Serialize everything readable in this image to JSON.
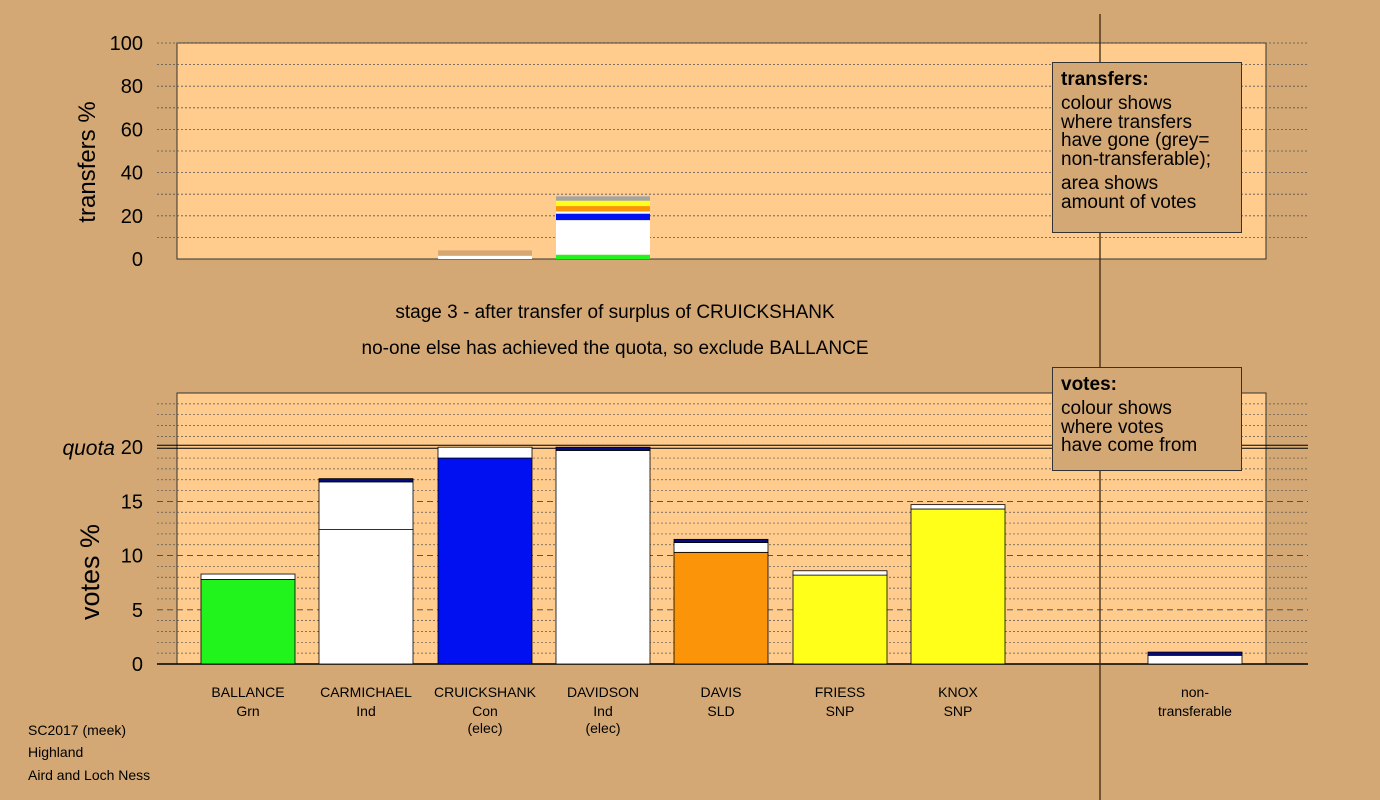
{
  "footer": {
    "line1": "SC2017 (meek)",
    "line2": "Highland",
    "line3": "Aird and Loch Ness"
  },
  "stage_title": "stage 3 - after transfer of surplus of CRUICKSHANK",
  "stage_subtitle": "no-one else has achieved the quota, so exclude BALLANCE",
  "legend_transfers": {
    "title": "transfers:",
    "lines_a": [
      "colour shows",
      "where transfers",
      "have gone (grey=",
      "non-transferable);"
    ],
    "lines_b": [
      "area shows",
      "amount of votes"
    ]
  },
  "legend_votes": {
    "title": "votes:",
    "lines": [
      "colour shows",
      "where votes",
      "have come from"
    ]
  },
  "colors": {
    "background": "#d3a874",
    "plot_bg": "#ffcc8e",
    "green": "#21f31d",
    "white": "#ffffff",
    "blue": "#0010f0",
    "navy": "#050b80",
    "orange": "#fb9408",
    "yellow": "#ffff19",
    "grey": "#a3a3a3",
    "gold": "#d4a870"
  },
  "chart_data": [
    {
      "type": "bar",
      "stacked": true,
      "ylabel": "transfers %",
      "ylim": [
        0,
        100
      ],
      "yticks": [
        0,
        20,
        40,
        60,
        80,
        100
      ],
      "bars": [
        {
          "slot": 3,
          "width": "narrow",
          "segments": [
            {
              "color": "white",
              "value": 1.5
            },
            {
              "color": "gold",
              "value": 2.5
            }
          ]
        },
        {
          "slot": 4,
          "width": "narrow",
          "segments": [
            {
              "color": "green",
              "value": 2.0
            },
            {
              "color": "white",
              "value": 16.0
            },
            {
              "color": "blue",
              "value": 3.0
            },
            {
              "color": "white",
              "value": 1.0
            },
            {
              "color": "orange",
              "value": 2.5
            },
            {
              "color": "yellow",
              "value": 2.5
            },
            {
              "color": "grey",
              "value": 2.0
            }
          ]
        }
      ]
    },
    {
      "type": "bar",
      "stacked": true,
      "ylabel": "votes %",
      "quota_label": "quota",
      "quota": 20,
      "ylim": [
        0,
        25
      ],
      "yticks": [
        0,
        5,
        10,
        15,
        20
      ],
      "candidates": [
        {
          "name": "BALLANCE",
          "party": "Grn",
          "note": "",
          "segments": [
            {
              "color": "green",
              "value": 7.8
            },
            {
              "color": "white",
              "value": 0.5
            }
          ]
        },
        {
          "name": "CARMICHAEL",
          "party": "Ind",
          "note": "",
          "segments": [
            {
              "color": "white",
              "value": 12.4
            },
            {
              "color": "white",
              "value": 4.4
            },
            {
              "color": "navy",
              "value": 0.3
            }
          ]
        },
        {
          "name": "CRUICKSHANK",
          "party": "Con",
          "note": "(elec)",
          "segments": [
            {
              "color": "blue",
              "value": 19.0
            },
            {
              "color": "white",
              "value": 1.0
            }
          ]
        },
        {
          "name": "DAVIDSON",
          "party": "Ind",
          "note": "(elec)",
          "segments": [
            {
              "color": "white",
              "value": 19.7
            },
            {
              "color": "navy",
              "value": 0.3
            }
          ]
        },
        {
          "name": "DAVIS",
          "party": "SLD",
          "note": "",
          "segments": [
            {
              "color": "orange",
              "value": 10.3
            },
            {
              "color": "white",
              "value": 0.9
            },
            {
              "color": "navy",
              "value": 0.3
            }
          ]
        },
        {
          "name": "FRIESS",
          "party": "SNP",
          "note": "",
          "segments": [
            {
              "color": "yellow",
              "value": 8.2
            },
            {
              "color": "white",
              "value": 0.4
            }
          ]
        },
        {
          "name": "KNOX",
          "party": "SNP",
          "note": "",
          "segments": [
            {
              "color": "yellow",
              "value": 14.3
            },
            {
              "color": "white",
              "value": 0.4
            }
          ]
        }
      ],
      "nontransferable": {
        "label_line1": "non-",
        "label_line2": "transferable",
        "segments": [
          {
            "color": "white",
            "value": 0.8
          },
          {
            "color": "navy",
            "value": 0.3
          }
        ]
      }
    }
  ]
}
